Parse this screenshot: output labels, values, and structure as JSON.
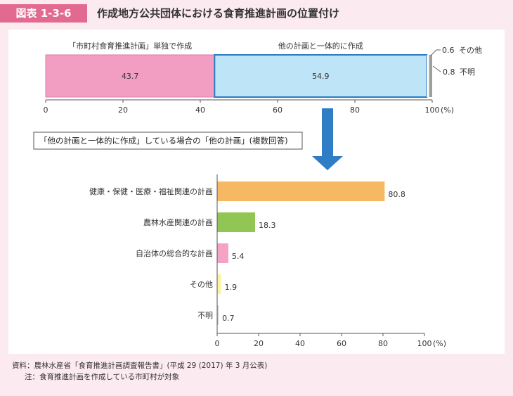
{
  "header": {
    "badge": "図表 1-3-6",
    "title": "作成地方公共団体における食育推進計画の位置付け"
  },
  "chart_data": [
    {
      "type": "bar",
      "orientation": "horizontal",
      "stacked": true,
      "categories": [
        "「市町村食育推進計画」単独で作成",
        "他の計画と一体的に作成",
        "その他",
        "不明"
      ],
      "values": [
        43.7,
        54.9,
        0.6,
        0.8
      ],
      "value_labels": [
        "43.7",
        "54.9",
        "0.6",
        "0.8"
      ],
      "colors": [
        "#f29ec2",
        "#bee4f7",
        "#ffffff",
        "#9e9e9e"
      ],
      "xlim": [
        0,
        100
      ],
      "xticks": [
        0,
        20,
        40,
        60,
        80,
        100
      ],
      "xunit": "(%)",
      "grid": false
    },
    {
      "type": "bar",
      "orientation": "horizontal",
      "title": "「他の計画と一体的に作成」している場合の「他の計画」(複数回答)",
      "categories": [
        "健康・保健・医療・福祉関連の計画",
        "農林水産関連の計画",
        "自治体の総合的な計画",
        "その他",
        "不明"
      ],
      "values": [
        80.8,
        18.3,
        5.4,
        1.9,
        0.7
      ],
      "value_labels": [
        "80.8",
        "18.3",
        "5.4",
        "1.9",
        "0.7"
      ],
      "colors": [
        "#f6b862",
        "#92c654",
        "#f5a3c4",
        "#fdf3a2",
        "#cfcfcf"
      ],
      "xlim": [
        0,
        100
      ],
      "xticks": [
        0,
        20,
        40,
        60,
        80,
        100
      ],
      "xunit": "(%)",
      "grid": false
    }
  ],
  "notes": {
    "source": "資料：農林水産省「食育推進計画調査報告書」(平成 29 (2017) 年 3 月公表)",
    "note": "注：食育推進計画を作成している市町村が対象"
  }
}
